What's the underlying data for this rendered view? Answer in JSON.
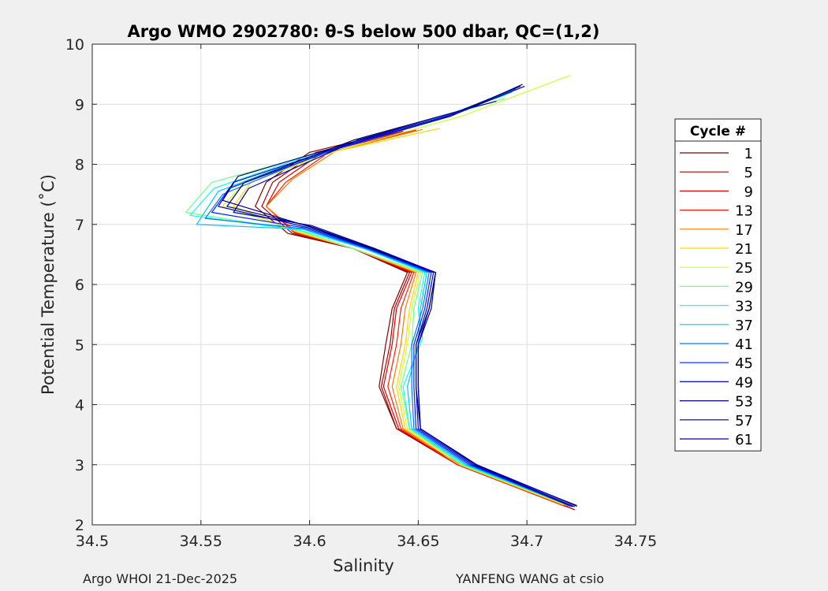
{
  "chart_data": {
    "type": "line",
    "title": "Argo WMO 2902780: θ-S below 500 dbar,  QC=(1,2)",
    "xlabel": "Salinity",
    "ylabel": "Potential Temperature (˚C)",
    "xlim": [
      34.5,
      34.75
    ],
    "ylim": [
      2,
      10
    ],
    "xticks": [
      34.5,
      34.55,
      34.6,
      34.65,
      34.7,
      34.75
    ],
    "xtick_labels": [
      "34.5",
      "34.55",
      "34.6",
      "34.65",
      "34.7",
      "34.75"
    ],
    "yticks": [
      2,
      3,
      4,
      5,
      6,
      7,
      8,
      9,
      10
    ],
    "ytick_labels": [
      "2",
      "3",
      "4",
      "5",
      "6",
      "7",
      "8",
      "9",
      "10"
    ],
    "grid": true,
    "legend_title": "Cycle #",
    "legend_position": "outside-right",
    "series": [
      {
        "name": "1",
        "color": "#800000",
        "points": [
          [
            34.722,
            2.25
          ],
          [
            34.67,
            3.0
          ],
          [
            34.64,
            3.6
          ],
          [
            34.632,
            4.3
          ],
          [
            34.635,
            5.0
          ],
          [
            34.638,
            5.6
          ],
          [
            34.645,
            6.2
          ],
          [
            34.62,
            6.6
          ],
          [
            34.59,
            6.85
          ],
          [
            34.575,
            7.3
          ],
          [
            34.58,
            7.7
          ],
          [
            34.6,
            8.2
          ],
          [
            34.64,
            8.55
          ]
        ]
      },
      {
        "name": "5",
        "color": "#ae0000",
        "points": [
          [
            34.72,
            2.28
          ],
          [
            34.668,
            3.0
          ],
          [
            34.64,
            3.6
          ],
          [
            34.633,
            4.3
          ],
          [
            34.637,
            5.0
          ],
          [
            34.639,
            5.6
          ],
          [
            34.646,
            6.2
          ],
          [
            34.62,
            6.6
          ],
          [
            34.592,
            6.85
          ],
          [
            34.578,
            7.3
          ],
          [
            34.583,
            7.7
          ],
          [
            34.603,
            8.2
          ],
          [
            34.643,
            8.55
          ]
        ]
      },
      {
        "name": "9",
        "color": "#dd0000",
        "points": [
          [
            34.719,
            2.3
          ],
          [
            34.668,
            3.0
          ],
          [
            34.641,
            3.6
          ],
          [
            34.634,
            4.3
          ],
          [
            34.638,
            5.0
          ],
          [
            34.64,
            5.6
          ],
          [
            34.647,
            6.2
          ],
          [
            34.62,
            6.6
          ],
          [
            34.593,
            6.86
          ],
          [
            34.58,
            7.3
          ],
          [
            34.586,
            7.7
          ],
          [
            34.606,
            8.2
          ],
          [
            34.646,
            8.56
          ]
        ]
      },
      {
        "name": "13",
        "color": "#ff1f00",
        "points": [
          [
            34.718,
            2.3
          ],
          [
            34.668,
            3.0
          ],
          [
            34.642,
            3.6
          ],
          [
            34.636,
            4.3
          ],
          [
            34.64,
            5.0
          ],
          [
            34.642,
            5.6
          ],
          [
            34.648,
            6.2
          ],
          [
            34.62,
            6.6
          ],
          [
            34.593,
            6.87
          ],
          [
            34.58,
            7.3
          ],
          [
            34.589,
            7.7
          ],
          [
            34.609,
            8.2
          ],
          [
            34.649,
            8.57
          ]
        ]
      },
      {
        "name": "17",
        "color": "#ff7a00",
        "points": [
          [
            34.718,
            2.32
          ],
          [
            34.669,
            3.0
          ],
          [
            34.643,
            3.6
          ],
          [
            34.638,
            4.3
          ],
          [
            34.642,
            5.0
          ],
          [
            34.644,
            5.6
          ],
          [
            34.649,
            6.2
          ],
          [
            34.62,
            6.6
          ],
          [
            34.594,
            6.87
          ],
          [
            34.58,
            7.3
          ],
          [
            34.592,
            7.75
          ],
          [
            34.612,
            8.22
          ],
          [
            34.652,
            8.58
          ]
        ]
      },
      {
        "name": "21",
        "color": "#ffd500",
        "points": [
          [
            34.717,
            2.33
          ],
          [
            34.669,
            3.0
          ],
          [
            34.644,
            3.6
          ],
          [
            34.64,
            4.3
          ],
          [
            34.644,
            5.0
          ],
          [
            34.646,
            5.6
          ],
          [
            34.65,
            6.2
          ],
          [
            34.62,
            6.6
          ],
          [
            34.594,
            6.88
          ],
          [
            34.565,
            7.3
          ],
          [
            34.573,
            7.7
          ],
          [
            34.61,
            8.2
          ],
          [
            34.66,
            8.6
          ]
        ]
      },
      {
        "name": "25",
        "color": "#ccff33",
        "points": [
          [
            34.717,
            2.34
          ],
          [
            34.67,
            3.0
          ],
          [
            34.645,
            3.6
          ],
          [
            34.641,
            4.3
          ],
          [
            34.645,
            5.0
          ],
          [
            34.647,
            5.6
          ],
          [
            34.651,
            6.2
          ],
          [
            34.62,
            6.6
          ],
          [
            34.595,
            6.88
          ],
          [
            34.56,
            7.3
          ],
          [
            34.57,
            7.7
          ],
          [
            34.615,
            8.25
          ],
          [
            34.67,
            8.8
          ],
          [
            34.72,
            9.48
          ]
        ]
      },
      {
        "name": "29",
        "color": "#70ff8f",
        "points": [
          [
            34.718,
            2.34
          ],
          [
            34.67,
            3.0
          ],
          [
            34.646,
            3.6
          ],
          [
            34.642,
            4.3
          ],
          [
            34.647,
            5.0
          ],
          [
            34.648,
            5.6
          ],
          [
            34.652,
            6.2
          ],
          [
            34.62,
            6.6
          ],
          [
            34.595,
            6.9
          ],
          [
            34.543,
            7.2
          ],
          [
            34.555,
            7.7
          ],
          [
            34.595,
            8.1
          ],
          [
            34.64,
            8.55
          ],
          [
            34.69,
            9.1
          ]
        ]
      },
      {
        "name": "33",
        "color": "#14ffeb",
        "points": [
          [
            34.719,
            2.33
          ],
          [
            34.671,
            3.0
          ],
          [
            34.646,
            3.6
          ],
          [
            34.643,
            4.3
          ],
          [
            34.652,
            5.1
          ],
          [
            34.65,
            5.6
          ],
          [
            34.653,
            6.2
          ],
          [
            34.625,
            6.6
          ],
          [
            34.596,
            6.9
          ],
          [
            34.545,
            7.15
          ],
          [
            34.556,
            7.6
          ],
          [
            34.6,
            8.15
          ],
          [
            34.645,
            8.6
          ],
          [
            34.69,
            9.15
          ]
        ]
      },
      {
        "name": "37",
        "color": "#00c8ff",
        "points": [
          [
            34.72,
            2.32
          ],
          [
            34.672,
            3.0
          ],
          [
            34.647,
            3.6
          ],
          [
            34.645,
            4.3
          ],
          [
            34.65,
            5.0
          ],
          [
            34.651,
            5.6
          ],
          [
            34.654,
            6.2
          ],
          [
            34.625,
            6.6
          ],
          [
            34.597,
            6.92
          ],
          [
            34.548,
            7.0
          ],
          [
            34.558,
            7.55
          ],
          [
            34.605,
            8.2
          ],
          [
            34.65,
            8.65
          ],
          [
            34.693,
            9.2
          ]
        ]
      },
      {
        "name": "41",
        "color": "#0078ff",
        "points": [
          [
            34.72,
            2.31
          ],
          [
            34.673,
            3.0
          ],
          [
            34.648,
            3.6
          ],
          [
            34.647,
            4.3
          ],
          [
            34.647,
            5.0
          ],
          [
            34.652,
            5.6
          ],
          [
            34.655,
            6.2
          ],
          [
            34.626,
            6.6
          ],
          [
            34.597,
            6.93
          ],
          [
            34.552,
            7.1
          ],
          [
            34.56,
            7.5
          ],
          [
            34.608,
            8.22
          ],
          [
            34.655,
            8.7
          ],
          [
            34.695,
            9.25
          ]
        ]
      },
      {
        "name": "45",
        "color": "#0022ff",
        "points": [
          [
            34.721,
            2.31
          ],
          [
            34.674,
            3.0
          ],
          [
            34.649,
            3.6
          ],
          [
            34.648,
            4.3
          ],
          [
            34.648,
            5.0
          ],
          [
            34.653,
            5.6
          ],
          [
            34.656,
            6.2
          ],
          [
            34.627,
            6.6
          ],
          [
            34.598,
            6.94
          ],
          [
            34.555,
            7.2
          ],
          [
            34.563,
            7.6
          ],
          [
            34.612,
            8.25
          ],
          [
            34.66,
            8.75
          ],
          [
            34.697,
            9.3
          ]
        ]
      },
      {
        "name": "49",
        "color": "#0000d0",
        "points": [
          [
            34.721,
            2.3
          ],
          [
            34.675,
            3.0
          ],
          [
            34.65,
            3.6
          ],
          [
            34.649,
            4.3
          ],
          [
            34.649,
            5.0
          ],
          [
            34.654,
            5.6
          ],
          [
            34.657,
            6.2
          ],
          [
            34.628,
            6.6
          ],
          [
            34.599,
            6.95
          ],
          [
            34.558,
            7.3
          ],
          [
            34.565,
            7.7
          ],
          [
            34.615,
            8.3
          ],
          [
            34.665,
            8.8
          ],
          [
            34.698,
            9.33
          ]
        ]
      },
      {
        "name": "53",
        "color": "#000090",
        "points": [
          [
            34.722,
            2.3
          ],
          [
            34.676,
            3.0
          ],
          [
            34.651,
            3.6
          ],
          [
            34.649,
            4.3
          ],
          [
            34.649,
            5.0
          ],
          [
            34.655,
            5.6
          ],
          [
            34.658,
            6.2
          ],
          [
            34.628,
            6.6
          ],
          [
            34.6,
            6.96
          ],
          [
            34.56,
            7.4
          ],
          [
            34.567,
            7.8
          ],
          [
            34.618,
            8.35
          ],
          [
            34.668,
            8.85
          ],
          [
            34.699,
            9.3
          ]
        ]
      },
      {
        "name": "57",
        "color": "#000060",
        "points": [
          [
            34.723,
            2.31
          ],
          [
            34.677,
            3.0
          ],
          [
            34.651,
            3.6
          ],
          [
            34.65,
            4.3
          ],
          [
            34.65,
            5.0
          ],
          [
            34.655,
            5.6
          ],
          [
            34.658,
            6.2
          ],
          [
            34.629,
            6.6
          ],
          [
            34.6,
            6.97
          ],
          [
            34.562,
            7.3
          ],
          [
            34.57,
            7.7
          ],
          [
            34.62,
            8.4
          ],
          [
            34.67,
            8.9
          ],
          [
            34.697,
            9.3
          ]
        ]
      },
      {
        "name": "61",
        "color": "#0000aa",
        "points": [
          [
            34.723,
            2.32
          ],
          [
            34.676,
            3.0
          ],
          [
            34.651,
            3.6
          ],
          [
            34.65,
            4.3
          ],
          [
            34.65,
            5.0
          ],
          [
            34.656,
            5.6
          ],
          [
            34.658,
            6.2
          ],
          [
            34.63,
            6.6
          ],
          [
            34.601,
            6.98
          ],
          [
            34.565,
            7.2
          ],
          [
            34.572,
            7.6
          ],
          [
            34.622,
            8.4
          ],
          [
            34.672,
            8.92
          ],
          [
            34.686,
            9.05
          ]
        ]
      }
    ]
  },
  "footer": {
    "left": "Argo WHOI 21-Dec-2025",
    "right": "YANFENG WANG at csio"
  }
}
